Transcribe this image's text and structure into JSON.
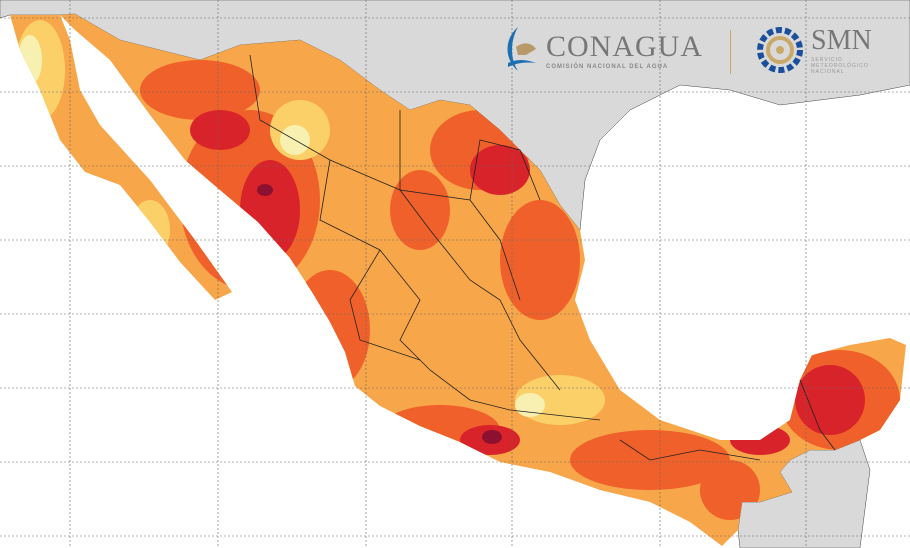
{
  "logos": {
    "conagua": {
      "title": "CONAGUA",
      "subtitle": "COMISIÓN NACIONAL DEL AGUA"
    },
    "smn": {
      "title": "SMN",
      "subtitle": "SERVICIO METEOROLÓGICO NACIONAL"
    }
  },
  "colors": {
    "sea": "#ffffff",
    "neighbor_land": "#d9d9d9",
    "low": "#f7f0b0",
    "mid": "#f8a64a",
    "high": "#f0602a",
    "very_high": "#d8232a",
    "extreme": "#8c1030"
  }
}
